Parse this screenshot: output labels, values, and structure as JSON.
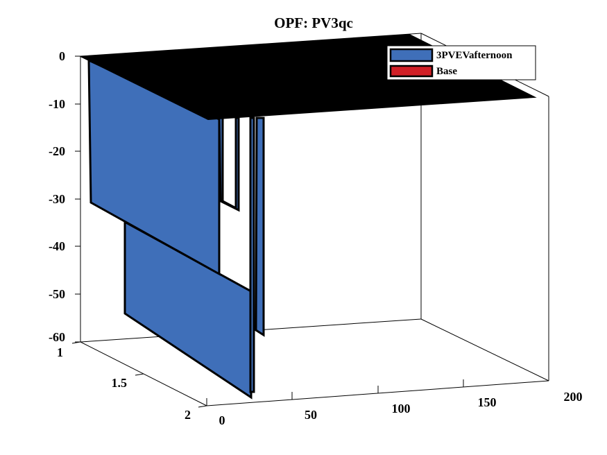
{
  "chart_data": {
    "type": "area",
    "title": "OPF: PV3qc",
    "xlabel": "",
    "ylabel": "",
    "zlabel": "",
    "x_ticks": [
      "0",
      "50",
      "100",
      "150",
      "200"
    ],
    "y_ticks": [
      "1",
      "1.5",
      "2"
    ],
    "z_ticks": [
      "0",
      "-10",
      "-20",
      "-30",
      "-40",
      "-50",
      "-60"
    ],
    "xlim": [
      0,
      200
    ],
    "ylim": [
      1,
      2
    ],
    "zlim": [
      -60,
      0
    ],
    "legend_position": "top-right",
    "series": [
      {
        "name": "3PVEVafternoon",
        "color": "#3f6fb9",
        "y": 1,
        "points": [
          {
            "x": 0,
            "z": 0
          },
          {
            "x": 1,
            "z": 0
          },
          {
            "x": 1,
            "z": -31
          },
          {
            "x": 2,
            "z": -31
          },
          {
            "x": 2,
            "z": 0
          },
          {
            "x": 3,
            "z": 0
          },
          {
            "x": 3,
            "z": -31
          },
          {
            "x": 200,
            "z": -31
          }
        ]
      },
      {
        "name": "3PVEVafternoon",
        "color": "#3f6fb9",
        "y": 2,
        "points": [
          {
            "x": 0,
            "z": -55
          },
          {
            "x": 1,
            "z": -55
          },
          {
            "x": 1,
            "z": -55
          },
          {
            "x": 2,
            "z": -55
          },
          {
            "x": 2,
            "z": -55
          },
          {
            "x": 3,
            "z": -55
          },
          {
            "x": 200,
            "z": -55
          }
        ]
      },
      {
        "name": "Base",
        "color": "#d02027",
        "values": []
      }
    ],
    "legend": [
      {
        "label": "3PVEVafternoon",
        "color": "#3f6fb9"
      },
      {
        "label": "Base",
        "color": "#d02027"
      }
    ],
    "top_surface_color": "#000000"
  }
}
